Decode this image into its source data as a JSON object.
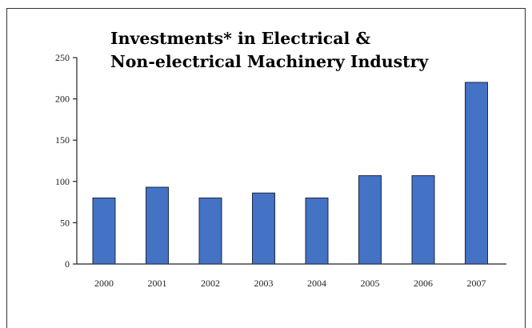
{
  "chart_data": {
    "type": "bar",
    "title_lines": [
      "Investments* in Electrical &",
      "Non-electrical Machinery Industry"
    ],
    "categories": [
      "2000",
      "2001",
      "2002",
      "2003",
      "2004",
      "2005",
      "2006",
      "2007"
    ],
    "values": [
      80,
      93,
      80,
      86,
      80,
      107,
      107,
      220
    ],
    "ylim": [
      0,
      250
    ],
    "yticks": [
      "0",
      "50",
      "100",
      "150",
      "200",
      "250"
    ],
    "grid": false,
    "bar_color": "#4472c4",
    "bar_edge_color": "#1f2a44"
  }
}
